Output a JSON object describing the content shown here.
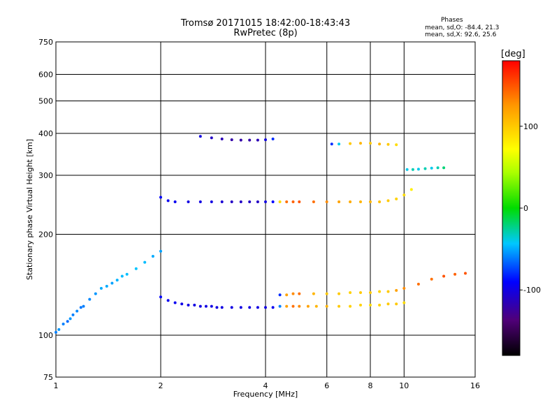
{
  "chart_data": {
    "type": "scatter",
    "title": "Tromsø 20171015 18:42:00-18:43:43",
    "subtitle": "RwPretec (8p)",
    "xlabel": "Frequency [MHz]",
    "ylabel": "Stationary phase Virtual Height [km]",
    "x_scale": "log",
    "y_scale": "log",
    "xlim": [
      1,
      16
    ],
    "ylim": [
      75,
      750
    ],
    "x_ticks": [
      1,
      2,
      4,
      6,
      8,
      10,
      16
    ],
    "x_tick_labels": [
      "1",
      "2",
      "4",
      "6",
      "8",
      "10",
      "16"
    ],
    "y_ticks": [
      75,
      100,
      200,
      300,
      400,
      500,
      600,
      750
    ],
    "y_tick_labels": [
      "75",
      "100",
      "200",
      "300",
      "400",
      "500",
      "600",
      "750"
    ],
    "grid": true,
    "colorbar": {
      "unit": "[deg]",
      "ticks": [
        100,
        0,
        -100
      ],
      "tick_labels": [
        "100",
        "0",
        "-100"
      ],
      "range": [
        -180,
        180
      ],
      "colormap": "rainbow"
    },
    "stats": {
      "heading": "Phases",
      "line_o": "mean, sd,O: -84.4, 21.3",
      "line_x": "mean, sd,X:  92.6, 25.6"
    },
    "series": [
      {
        "x": [
          1.0,
          1.02,
          1.05,
          1.08,
          1.1,
          1.12,
          1.15,
          1.18,
          1.2,
          1.25,
          1.3,
          1.35,
          1.4,
          1.45,
          1.5,
          1.55,
          1.6,
          1.7,
          1.8,
          1.9,
          2.0
        ],
        "y": [
          102,
          104,
          108,
          110,
          112,
          115,
          118,
          121,
          122,
          128,
          133,
          138,
          140,
          143,
          146,
          150,
          152,
          158,
          165,
          172,
          178
        ],
        "phase": [
          -60,
          -55,
          -60,
          -65,
          -55,
          -60,
          -58,
          -62,
          -60,
          -58,
          -55,
          -50,
          -50,
          -52,
          -48,
          -46,
          -45,
          -44,
          -46,
          -50,
          -52
        ]
      },
      {
        "x": [
          2.0,
          2.1,
          2.2,
          2.3,
          2.4,
          2.5,
          2.6,
          2.7,
          2.8,
          2.9,
          3.0,
          3.2,
          3.4,
          3.6,
          3.8,
          4.0,
          4.2,
          4.4,
          4.6,
          4.8,
          5.0,
          5.3,
          5.6,
          6.0,
          6.5,
          7.0,
          7.5,
          8.0,
          8.5,
          9.0,
          9.5,
          10.0
        ],
        "y": [
          130,
          127,
          125,
          124,
          123,
          123,
          122,
          122,
          122,
          121,
          121,
          121,
          121,
          121,
          121,
          121,
          121,
          122,
          122,
          122,
          122,
          122,
          122,
          122,
          122,
          122,
          123,
          123,
          123,
          124,
          124,
          125
        ],
        "phase": [
          -90,
          -95,
          -95,
          -98,
          -100,
          -100,
          -100,
          -100,
          -100,
          -100,
          -100,
          -100,
          -100,
          -100,
          -100,
          -100,
          -95,
          -60,
          120,
          140,
          130,
          120,
          110,
          110,
          100,
          95,
          95,
          90,
          95,
          100,
          100,
          90
        ]
      },
      {
        "x": [
          2.0,
          2.1,
          2.2,
          2.4,
          2.6,
          2.8,
          3.0,
          3.2,
          3.4,
          3.6,
          3.8,
          4.0,
          4.2,
          4.4,
          4.6,
          4.8,
          5.0,
          5.5,
          6.0,
          6.5,
          7.0,
          7.5,
          8.0,
          8.5,
          9.0,
          9.5,
          10.0,
          10.5
        ],
        "y": [
          258,
          252,
          250,
          250,
          250,
          250,
          250,
          250,
          250,
          250,
          250,
          250,
          250,
          250,
          250,
          250,
          250,
          250,
          250,
          250,
          250,
          250,
          250,
          250,
          252,
          255,
          262,
          272
        ],
        "phase": [
          -90,
          -95,
          -95,
          -100,
          -100,
          -100,
          -105,
          -110,
          -110,
          -110,
          -110,
          -100,
          -90,
          90,
          140,
          145,
          150,
          140,
          130,
          120,
          115,
          110,
          110,
          105,
          100,
          95,
          90,
          80
        ]
      },
      {
        "x": [
          2.6,
          2.8,
          3.0,
          3.2,
          3.4,
          3.6,
          3.8,
          4.0,
          4.2
        ],
        "y": [
          392,
          388,
          385,
          383,
          382,
          382,
          382,
          383,
          385
        ],
        "phase": [
          -100,
          -110,
          -115,
          -120,
          -120,
          -120,
          -115,
          -100,
          -80
        ]
      },
      {
        "x": [
          6.2,
          6.5,
          7.0,
          7.5,
          8.0,
          8.5,
          9.0,
          9.5
        ],
        "y": [
          372,
          372,
          373,
          374,
          374,
          372,
          371,
          370
        ],
        "phase": [
          -80,
          -40,
          100,
          110,
          100,
          110,
          100,
          90
        ]
      },
      {
        "x": [
          4.4,
          4.6,
          4.8,
          5.0,
          5.5,
          6.0,
          6.5,
          7.0,
          7.5,
          8.0,
          8.5,
          9.0,
          9.5,
          10.0,
          11.0,
          12.0,
          13.0,
          14.0,
          15.0
        ],
        "y": [
          132,
          132,
          133,
          133,
          133,
          133,
          133,
          134,
          134,
          134,
          135,
          135,
          136,
          138,
          142,
          147,
          150,
          152,
          153
        ],
        "phase": [
          -80,
          120,
          130,
          140,
          110,
          100,
          100,
          95,
          100,
          100,
          95,
          100,
          120,
          130,
          140,
          140,
          150,
          145,
          150
        ]
      },
      {
        "x": [
          10.2,
          10.6,
          11.0,
          11.5,
          12.0,
          12.5,
          13.0
        ],
        "y": [
          312,
          312,
          313,
          314,
          315,
          316,
          316
        ],
        "phase": [
          -40,
          -30,
          -40,
          -30,
          -40,
          -30,
          -20
        ]
      }
    ]
  }
}
